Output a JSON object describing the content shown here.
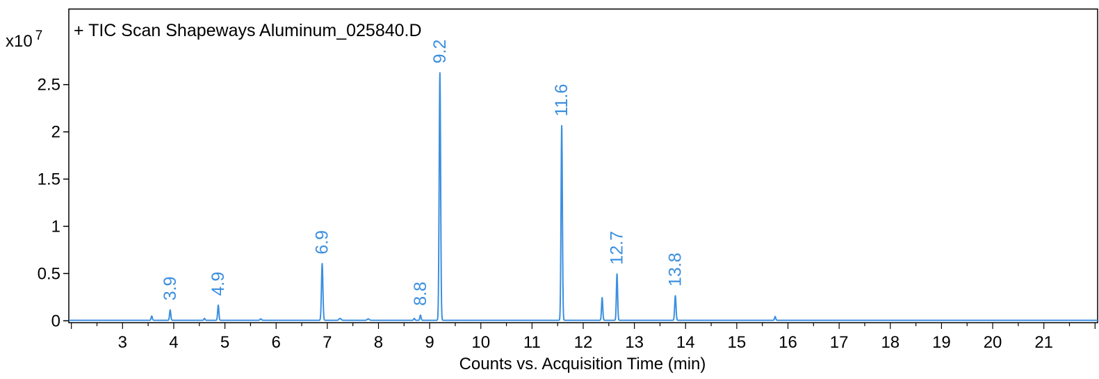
{
  "chart_data": {
    "type": "line",
    "title": "+ TIC Scan Shapeways Aluminum_025840.D",
    "xlabel": "Counts vs. Acquisition Time (min)",
    "ylabel": "",
    "y_multiplier_label": "x10",
    "y_multiplier_exponent": "7",
    "xlim": [
      1.95,
      22.05
    ],
    "ylim": [
      -0.02,
      3.3
    ],
    "x_ticks": [
      "3",
      "4",
      "5",
      "6",
      "7",
      "8",
      "9",
      "10",
      "11",
      "12",
      "13",
      "14",
      "15",
      "16",
      "17",
      "18",
      "19",
      "20",
      "21"
    ],
    "y_ticks": [
      "0",
      "0.5",
      "1",
      "1.5",
      "2",
      "2.5"
    ],
    "grid": false,
    "line_color": "#3b8fe0",
    "peaks": [
      {
        "x": 3.57,
        "y": 0.045,
        "w": 0.012
      },
      {
        "x": 3.93,
        "y": 0.11,
        "w": 0.012
      },
      {
        "x": 4.6,
        "y": 0.02,
        "w": 0.012
      },
      {
        "x": 4.87,
        "y": 0.16,
        "w": 0.012
      },
      {
        "x": 5.7,
        "y": 0.015,
        "w": 0.015
      },
      {
        "x": 6.9,
        "y": 0.6,
        "w": 0.014
      },
      {
        "x": 7.25,
        "y": 0.02,
        "w": 0.02
      },
      {
        "x": 7.8,
        "y": 0.015,
        "w": 0.02
      },
      {
        "x": 8.7,
        "y": 0.02,
        "w": 0.012
      },
      {
        "x": 8.82,
        "y": 0.055,
        "w": 0.012
      },
      {
        "x": 9.2,
        "y": 2.62,
        "w": 0.014
      },
      {
        "x": 11.58,
        "y": 2.06,
        "w": 0.013
      },
      {
        "x": 12.37,
        "y": 0.24,
        "w": 0.012
      },
      {
        "x": 12.66,
        "y": 0.49,
        "w": 0.012
      },
      {
        "x": 13.8,
        "y": 0.26,
        "w": 0.013
      },
      {
        "x": 15.75,
        "y": 0.04,
        "w": 0.012
      }
    ],
    "peak_labels": [
      {
        "x": 3.93,
        "y": 0.11,
        "text": "3.9"
      },
      {
        "x": 4.87,
        "y": 0.16,
        "text": "4.9"
      },
      {
        "x": 6.9,
        "y": 0.6,
        "text": "6.9"
      },
      {
        "x": 8.82,
        "y": 0.055,
        "text": "8.8"
      },
      {
        "x": 9.2,
        "y": 2.62,
        "text": "9.2"
      },
      {
        "x": 11.58,
        "y": 2.06,
        "text": "11.6"
      },
      {
        "x": 12.66,
        "y": 0.49,
        "text": "12.7"
      },
      {
        "x": 13.8,
        "y": 0.26,
        "text": "13.8"
      }
    ]
  }
}
